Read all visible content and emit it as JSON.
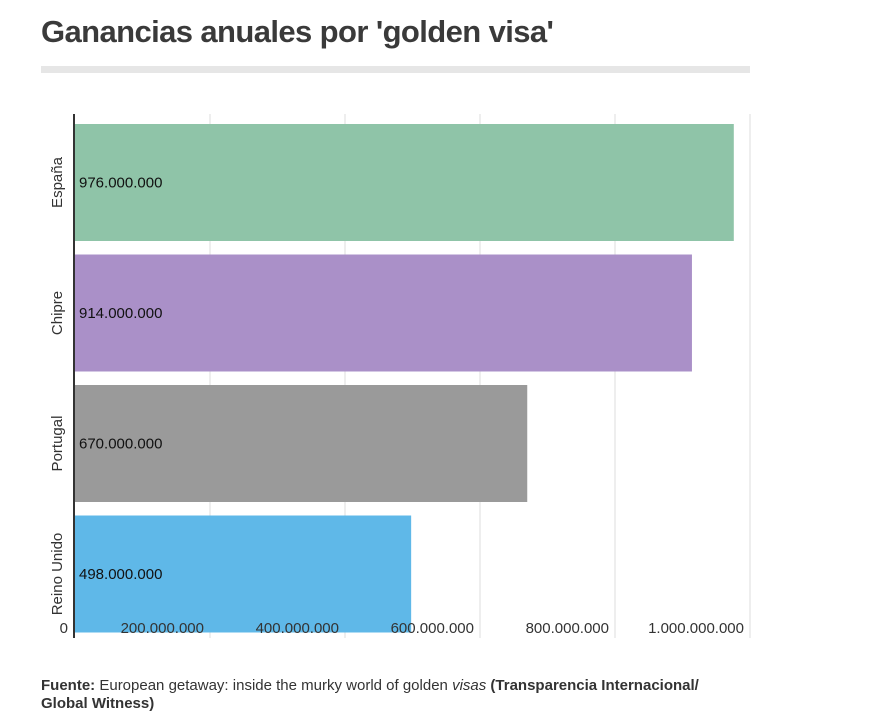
{
  "title": "Ganancias anuales por 'golden visa'",
  "source": {
    "label": "Fuente:",
    "text_part1": "European getaway: inside the murky world of golden",
    "text_italic": "visas",
    "text_part2": "(Transparencia Internacional/ Global Witness)"
  },
  "chart_data": {
    "type": "bar",
    "orientation": "horizontal",
    "categories": [
      "España",
      "Chipre",
      "Portugal",
      "Reino Unido"
    ],
    "values": [
      976000000,
      914000000,
      670000000,
      498000000
    ],
    "value_labels": [
      "976.000.000",
      "914.000.000",
      "670.000.000",
      "498.000.000"
    ],
    "colors": [
      "#8fc4a8",
      "#aa90c8",
      "#9a9a9a",
      "#5fb8e8"
    ],
    "xlim": [
      0,
      1000000000
    ],
    "x_ticks": [
      0,
      200000000,
      400000000,
      600000000,
      800000000,
      1000000000
    ],
    "x_tick_labels": [
      "0",
      "200.000.000",
      "400.000.000",
      "600.000.000",
      "800.000.000",
      "1.000.000.000"
    ],
    "grid": true,
    "xlabel": "",
    "ylabel": ""
  }
}
